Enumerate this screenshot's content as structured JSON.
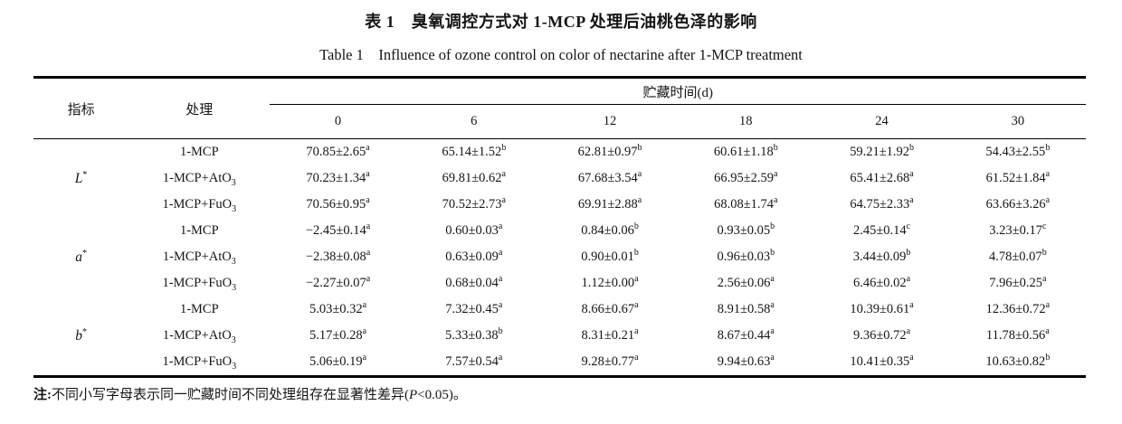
{
  "titles": {
    "cn": "表 1　臭氧调控方式对 1-MCP 处理后油桃色泽的影响",
    "en": "Table 1　Influence of ozone control on color of nectarine after 1-MCP treatment"
  },
  "table": {
    "headers": {
      "index": "指标",
      "treatment": "处理",
      "storage": "贮藏时间(d)"
    },
    "days": [
      "0",
      "6",
      "12",
      "18",
      "24",
      "30"
    ],
    "groups": [
      {
        "label": {
          "letter": "L",
          "sup": "*"
        },
        "rows": [
          {
            "t": "1-MCP",
            "tsub": "",
            "c": [
              [
                "70.85±2.65",
                "a"
              ],
              [
                "65.14±1.52",
                "b"
              ],
              [
                "62.81±0.97",
                "b"
              ],
              [
                "60.61±1.18",
                "b"
              ],
              [
                "59.21±1.92",
                "b"
              ],
              [
                "54.43±2.55",
                "b"
              ]
            ]
          },
          {
            "t": "1-MCP+AtO",
            "tsub": "3",
            "c": [
              [
                "70.23±1.34",
                "a"
              ],
              [
                "69.81±0.62",
                "a"
              ],
              [
                "67.68±3.54",
                "a"
              ],
              [
                "66.95±2.59",
                "a"
              ],
              [
                "65.41±2.68",
                "a"
              ],
              [
                "61.52±1.84",
                "a"
              ]
            ]
          },
          {
            "t": "1-MCP+FuO",
            "tsub": "3",
            "c": [
              [
                "70.56±0.95",
                "a"
              ],
              [
                "70.52±2.73",
                "a"
              ],
              [
                "69.91±2.88",
                "a"
              ],
              [
                "68.08±1.74",
                "a"
              ],
              [
                "64.75±2.33",
                "a"
              ],
              [
                "63.66±3.26",
                "a"
              ]
            ]
          }
        ]
      },
      {
        "label": {
          "letter": "a",
          "sup": "*"
        },
        "rows": [
          {
            "t": "1-MCP",
            "tsub": "",
            "c": [
              [
                "−2.45±0.14",
                "a"
              ],
              [
                "0.60±0.03",
                "a"
              ],
              [
                "0.84±0.06",
                "b"
              ],
              [
                "0.93±0.05",
                "b"
              ],
              [
                "2.45±0.14",
                "c"
              ],
              [
                "3.23±0.17",
                "c"
              ]
            ]
          },
          {
            "t": "1-MCP+AtO",
            "tsub": "3",
            "c": [
              [
                "−2.38±0.08",
                "a"
              ],
              [
                "0.63±0.09",
                "a"
              ],
              [
                "0.90±0.01",
                "b"
              ],
              [
                "0.96±0.03",
                "b"
              ],
              [
                "3.44±0.09",
                "b"
              ],
              [
                "4.78±0.07",
                "b"
              ]
            ]
          },
          {
            "t": "1-MCP+FuO",
            "tsub": "3",
            "c": [
              [
                "−2.27±0.07",
                "a"
              ],
              [
                "0.68±0.04",
                "a"
              ],
              [
                "1.12±0.00",
                "a"
              ],
              [
                "2.56±0.06",
                "a"
              ],
              [
                "6.46±0.02",
                "a"
              ],
              [
                "7.96±0.25",
                "a"
              ]
            ]
          }
        ]
      },
      {
        "label": {
          "letter": "b",
          "sup": "*"
        },
        "rows": [
          {
            "t": "1-MCP",
            "tsub": "",
            "c": [
              [
                "5.03±0.32",
                "a"
              ],
              [
                "7.32±0.45",
                "a"
              ],
              [
                "8.66±0.67",
                "a"
              ],
              [
                "8.91±0.58",
                "a"
              ],
              [
                "10.39±0.61",
                "a"
              ],
              [
                "12.36±0.72",
                "a"
              ]
            ]
          },
          {
            "t": "1-MCP+AtO",
            "tsub": "3",
            "c": [
              [
                "5.17±0.28",
                "a"
              ],
              [
                "5.33±0.38",
                "b"
              ],
              [
                "8.31±0.21",
                "a"
              ],
              [
                "8.67±0.44",
                "a"
              ],
              [
                "9.36±0.72",
                "a"
              ],
              [
                "11.78±0.56",
                "a"
              ]
            ]
          },
          {
            "t": "1-MCP+FuO",
            "tsub": "3",
            "c": [
              [
                "5.06±0.19",
                "a"
              ],
              [
                "7.57±0.54",
                "a"
              ],
              [
                "9.28±0.77",
                "a"
              ],
              [
                "9.94±0.63",
                "a"
              ],
              [
                "10.41±0.35",
                "a"
              ],
              [
                "10.63±0.82",
                "b"
              ]
            ]
          }
        ]
      }
    ]
  },
  "note": {
    "prefix": "注:",
    "text1": "不同小写字母表示同一贮藏时间不同处理组存在显著性差异(",
    "p": "P",
    "text2": "<0.05)。"
  }
}
